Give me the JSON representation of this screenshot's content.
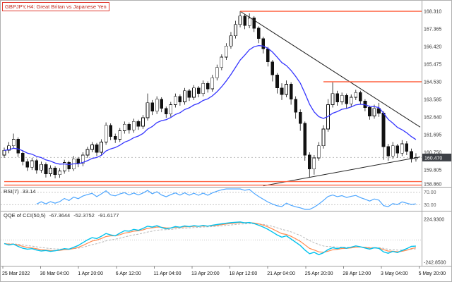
{
  "main_chart": {
    "title": "GBPJPY,H4: Great Britan vs Japanese Yen"
  },
  "rsi": {
    "name": "RSI(7)",
    "value": "33.14"
  },
  "qqe": {
    "name": "QQE of CCI(50,5)",
    "v1": "-67.3644",
    "v2": "-52.3752",
    "v3": "-91.6177"
  },
  "colors": {
    "bull": "#ffffff",
    "bear": "#111111",
    "candle_stroke": "#111111",
    "ma": "#3535ff",
    "resistance": "#ff6240",
    "trendline": "#222222",
    "rsi_line": "#4da6ff",
    "level_dash": "#c8c8c8",
    "qqe_fast": "#00c2ee",
    "qqe_slow": "#ff8a50",
    "qqe_trail": "#b8b8b8",
    "divider": "#a0a0a0",
    "scale_text": "#333333",
    "badge_bg": "#3d4046",
    "badge_text": "#ffffff",
    "price_dots": "#bbbbbb"
  },
  "chart_data": {
    "type": "candlestick",
    "title": "GBPJPY,H4: Great Britan vs Japanese Yen",
    "symbol": "GBPJPY",
    "timeframe": "H4",
    "price_axis": {
      "labels": [
        168.31,
        167.365,
        166.42,
        165.475,
        164.53,
        163.585,
        162.64,
        161.695,
        160.75,
        159.805,
        158.86
      ],
      "range": [
        158.86,
        168.31
      ]
    },
    "time_axis": {
      "labels": [
        "25 Mar 2022",
        "30 Mar 04:00",
        "1 Apr 20:00",
        "6 Apr 12:00",
        "11 Apr 04:00",
        "13 Apr 20:00",
        "18 Apr 12:00",
        "21 Apr 04:00",
        "25 Apr 20:00",
        "28 Apr 12:00",
        "3 May 04:00",
        "5 May 20:00"
      ]
    },
    "current_price": 160.47,
    "current_price_label": "160.470",
    "ma_period": 13,
    "hlines": [
      {
        "price": 168.31,
        "from_bar": 51
      },
      {
        "price": 164.53,
        "from_bar": 69
      },
      {
        "price": 159.18,
        "from_bar": 0
      },
      {
        "price": 158.99,
        "from_bar": 0
      }
    ],
    "trendlines": [
      {
        "from_bar": 51,
        "from_price": 168.31,
        "to_bar": 90,
        "to_price": 162.1
      },
      {
        "from_bar": 56,
        "from_price": 158.95,
        "to_bar": 90,
        "to_price": 160.5
      }
    ],
    "candles": [
      [
        160.6,
        161.0,
        160.45,
        160.85
      ],
      [
        160.85,
        161.3,
        160.7,
        161.1
      ],
      [
        161.1,
        161.75,
        160.95,
        161.45
      ],
      [
        161.45,
        161.55,
        160.5,
        160.7
      ],
      [
        160.7,
        160.85,
        160.05,
        160.25
      ],
      [
        160.25,
        160.4,
        159.75,
        159.95
      ],
      [
        159.95,
        160.45,
        159.8,
        160.3
      ],
      [
        160.3,
        160.4,
        159.6,
        159.8
      ],
      [
        159.8,
        160.25,
        159.65,
        160.1
      ],
      [
        160.1,
        160.2,
        159.4,
        159.6
      ],
      [
        159.6,
        160.05,
        159.45,
        159.9
      ],
      [
        159.9,
        160.0,
        159.35,
        159.55
      ],
      [
        159.55,
        159.9,
        159.38,
        159.75
      ],
      [
        159.75,
        160.35,
        159.6,
        160.2
      ],
      [
        160.2,
        160.3,
        159.7,
        159.85
      ],
      [
        159.85,
        160.55,
        159.75,
        160.4
      ],
      [
        160.4,
        160.5,
        159.95,
        160.15
      ],
      [
        160.15,
        160.75,
        160.0,
        160.6
      ],
      [
        160.6,
        161.05,
        160.45,
        160.9
      ],
      [
        160.9,
        161.3,
        160.75,
        161.15
      ],
      [
        161.15,
        161.25,
        160.55,
        160.75
      ],
      [
        160.75,
        161.45,
        160.6,
        161.3
      ],
      [
        161.3,
        162.35,
        161.15,
        162.2
      ],
      [
        162.2,
        162.3,
        161.4,
        161.6
      ],
      [
        161.6,
        161.75,
        161.25,
        161.45
      ],
      [
        161.45,
        162.05,
        161.3,
        161.9
      ],
      [
        161.9,
        162.4,
        161.75,
        162.25
      ],
      [
        162.25,
        162.35,
        161.75,
        161.95
      ],
      [
        161.95,
        162.55,
        161.8,
        162.4
      ],
      [
        162.4,
        162.5,
        161.95,
        162.15
      ],
      [
        162.15,
        162.75,
        162.0,
        162.6
      ],
      [
        162.6,
        163.9,
        162.45,
        163.4
      ],
      [
        163.4,
        163.55,
        162.75,
        162.95
      ],
      [
        162.95,
        163.75,
        162.8,
        163.6
      ],
      [
        163.6,
        163.7,
        162.9,
        163.1
      ],
      [
        163.1,
        163.2,
        162.6,
        162.8
      ],
      [
        162.8,
        163.45,
        162.65,
        163.3
      ],
      [
        163.3,
        163.9,
        163.15,
        163.75
      ],
      [
        163.75,
        163.85,
        163.25,
        163.45
      ],
      [
        163.45,
        164.2,
        163.3,
        164.05
      ],
      [
        164.05,
        164.15,
        163.5,
        163.7
      ],
      [
        163.7,
        164.35,
        163.55,
        164.2
      ],
      [
        164.2,
        164.3,
        163.7,
        163.9
      ],
      [
        163.9,
        164.6,
        163.75,
        164.45
      ],
      [
        164.45,
        164.55,
        163.95,
        164.15
      ],
      [
        164.15,
        164.9,
        164.0,
        164.75
      ],
      [
        164.75,
        165.45,
        164.6,
        165.3
      ],
      [
        165.3,
        166.0,
        165.15,
        165.85
      ],
      [
        165.85,
        166.6,
        165.7,
        166.45
      ],
      [
        166.45,
        167.2,
        166.3,
        167.0
      ],
      [
        167.0,
        167.8,
        166.85,
        167.6
      ],
      [
        167.6,
        168.31,
        167.45,
        168.05
      ],
      [
        168.05,
        168.15,
        167.35,
        167.55
      ],
      [
        167.55,
        168.2,
        167.4,
        167.95
      ],
      [
        167.95,
        168.05,
        167.2,
        167.4
      ],
      [
        167.4,
        167.5,
        166.6,
        166.85
      ],
      [
        166.85,
        166.95,
        166.05,
        166.3
      ],
      [
        166.3,
        166.4,
        165.35,
        165.6
      ],
      [
        165.6,
        165.7,
        164.55,
        164.9
      ],
      [
        164.9,
        165.0,
        163.9,
        164.2
      ],
      [
        164.2,
        164.45,
        163.55,
        163.85
      ],
      [
        163.85,
        164.6,
        163.7,
        164.4
      ],
      [
        164.4,
        164.5,
        163.3,
        163.6
      ],
      [
        163.6,
        163.75,
        162.55,
        162.9
      ],
      [
        162.9,
        163.05,
        161.9,
        162.3
      ],
      [
        162.3,
        162.4,
        160.3,
        160.6
      ],
      [
        160.6,
        160.75,
        159.42,
        159.85
      ],
      [
        159.85,
        160.6,
        159.55,
        160.45
      ],
      [
        160.45,
        161.3,
        160.3,
        161.1
      ],
      [
        161.1,
        162.2,
        160.95,
        162.0
      ],
      [
        162.0,
        163.6,
        161.85,
        163.3
      ],
      [
        163.3,
        164.5,
        163.15,
        163.9
      ],
      [
        163.9,
        164.05,
        163.25,
        163.45
      ],
      [
        163.45,
        163.95,
        163.3,
        163.8
      ],
      [
        163.8,
        163.9,
        163.1,
        163.35
      ],
      [
        163.35,
        163.85,
        163.2,
        163.7
      ],
      [
        163.7,
        164.1,
        163.55,
        163.95
      ],
      [
        163.95,
        164.05,
        163.3,
        163.5
      ],
      [
        163.5,
        163.6,
        162.95,
        163.15
      ],
      [
        163.15,
        163.25,
        162.5,
        162.7
      ],
      [
        162.7,
        163.3,
        162.55,
        163.1
      ],
      [
        163.1,
        163.4,
        162.65,
        162.85
      ],
      [
        162.85,
        162.95,
        160.35,
        161.05
      ],
      [
        161.05,
        161.2,
        160.3,
        160.55
      ],
      [
        160.55,
        161.3,
        160.4,
        161.1
      ],
      [
        161.1,
        161.2,
        160.45,
        160.7
      ],
      [
        160.7,
        161.4,
        160.55,
        161.2
      ],
      [
        161.2,
        161.35,
        160.6,
        160.8
      ],
      [
        160.8,
        160.95,
        160.2,
        160.4
      ],
      [
        160.4,
        160.7,
        160.25,
        160.47
      ]
    ],
    "indicators": {
      "rsi": {
        "period": 7,
        "last": 33.14,
        "levels": [
          70,
          30
        ]
      },
      "qqe": {
        "last": [
          -67.3644,
          -52.3752,
          -91.6177
        ],
        "scale_labels": [
          "224.9300",
          "-242.8500"
        ],
        "scale": [
          224.93,
          -242.85
        ],
        "main": [
          -40,
          -55,
          -45,
          -70,
          -90,
          -100,
          -95,
          -110,
          -120,
          -115,
          -125,
          -118,
          -108,
          -95,
          -100,
          -80,
          -60,
          -30,
          0,
          25,
          15,
          40,
          70,
          55,
          45,
          75,
          100,
          95,
          115,
          105,
          125,
          150,
          140,
          155,
          135,
          120,
          130,
          145,
          138,
          152,
          145,
          155,
          148,
          158,
          150,
          160,
          168,
          175,
          182,
          188,
          192,
          196,
          185,
          190,
          178,
          160,
          140,
          115,
          85,
          55,
          30,
          45,
          10,
          -25,
          -60,
          -110,
          -150,
          -135,
          -160,
          -140,
          -105,
          -85,
          -95,
          -80,
          -90,
          -78,
          -65,
          -75,
          -88,
          -100,
          -85,
          -92,
          -130,
          -145,
          -125,
          -138,
          -115,
          -95,
          -70,
          -67.4
        ]
      }
    }
  }
}
